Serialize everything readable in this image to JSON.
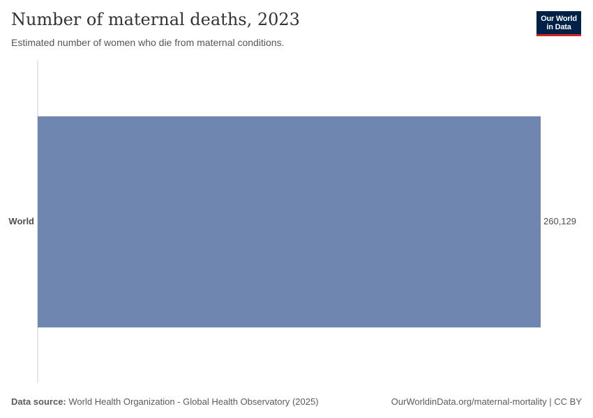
{
  "header": {
    "title": "Number of maternal deaths, 2023",
    "subtitle": "Estimated number of women who die from maternal conditions."
  },
  "logo": {
    "line1": "Our World",
    "line2": "in Data",
    "bg_color": "#002147",
    "accent_color": "#ce261e"
  },
  "chart_data": {
    "type": "bar",
    "orientation": "horizontal",
    "title": "Number of maternal deaths, 2023",
    "subtitle": "Estimated number of women who die from maternal conditions.",
    "categories": [
      "World"
    ],
    "values": [
      260129
    ],
    "value_labels": [
      "260,129"
    ],
    "xlim": [
      0,
      260129
    ],
    "grid": false,
    "bar_color": "#6f87b0"
  },
  "footer": {
    "source_label": "Data source:",
    "source_text": "World Health Organization - Global Health Observatory (2025)",
    "url_license": "OurWorldinData.org/maternal-mortality | CC BY"
  }
}
